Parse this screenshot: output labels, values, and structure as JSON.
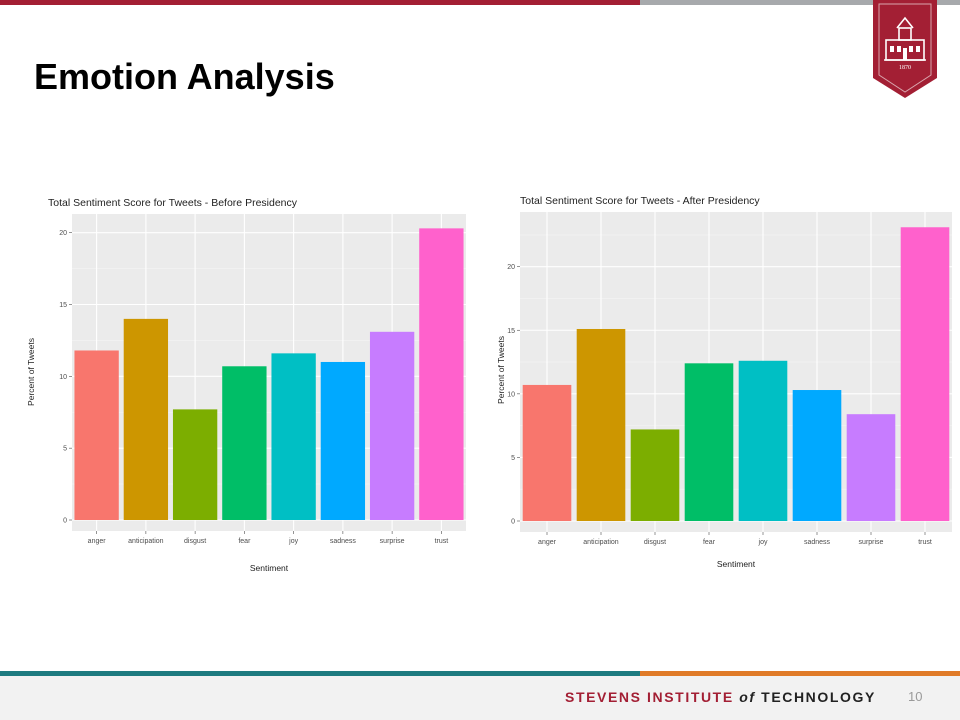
{
  "slide": {
    "title": "Emotion Analysis",
    "page_number": "10"
  },
  "footer": {
    "brand_part1": "STEVENS INSTITUTE ",
    "brand_part2": "of",
    "brand_part3": " TECHNOLOGY"
  },
  "logo": {
    "year": "1870"
  },
  "colors": {
    "brand_red": "#a31f34",
    "teal": "#1e7b80",
    "orange": "#e07b28",
    "panel_bg": "#ebebeb",
    "bars": [
      "#f8766d",
      "#cd9600",
      "#7cae00",
      "#00be67",
      "#00bfc4",
      "#00a9ff",
      "#c77cff",
      "#ff61cc"
    ]
  },
  "chart_data": [
    {
      "type": "bar",
      "title": "Total Sentiment Score for Tweets - Before Presidency",
      "xlabel": "Sentiment",
      "ylabel": "Percent of Tweets",
      "categories": [
        "anger",
        "anticipation",
        "disgust",
        "fear",
        "joy",
        "sadness",
        "surprise",
        "trust"
      ],
      "values": [
        11.8,
        14.0,
        7.7,
        10.7,
        11.6,
        11.0,
        13.1,
        20.3
      ],
      "yticks": [
        "0",
        "5",
        "10",
        "15",
        "20"
      ],
      "ylim": [
        0,
        21.3
      ],
      "grid": true,
      "legend": "none"
    },
    {
      "type": "bar",
      "title": "Total Sentiment Score for Tweets - After Presidency",
      "xlabel": "Sentiment",
      "ylabel": "Percent of Tweets",
      "categories": [
        "anger",
        "anticipation",
        "disgust",
        "fear",
        "joy",
        "sadness",
        "surprise",
        "trust"
      ],
      "values": [
        10.7,
        15.1,
        7.2,
        12.4,
        12.6,
        10.3,
        8.4,
        23.1
      ],
      "yticks": [
        "0",
        "5",
        "10",
        "15",
        "20"
      ],
      "ylim": [
        0,
        24.3
      ],
      "grid": true,
      "legend": "none"
    }
  ]
}
